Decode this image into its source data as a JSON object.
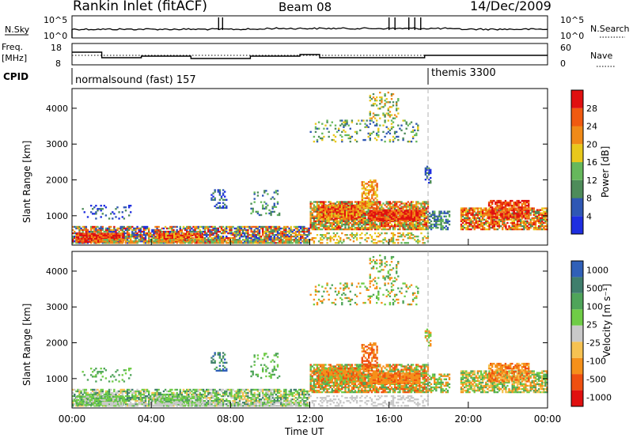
{
  "header": {
    "title": "Rankin Inlet (fitACF)",
    "beam": "Beam 08",
    "date": "14/Dec/2009"
  },
  "noise_panel": {
    "left_label": "N.Sky",
    "left_ticks": [
      "10^5",
      "10^0"
    ],
    "right_label": "N.Search",
    "right_ticks": [
      "10^5",
      "10^0"
    ]
  },
  "freq_panel": {
    "left_label_1": "Freq.",
    "left_label_2": "[MHz]",
    "left_ticks": [
      "18",
      "8"
    ],
    "right_label": "Nave",
    "right_ticks": [
      "60",
      "0"
    ]
  },
  "cpid": {
    "label": "CPID",
    "segments": [
      {
        "name": "normalsound (fast) 157",
        "start_hour": 0
      },
      {
        "name": "themis 3300",
        "start_hour": 18
      }
    ]
  },
  "colors": {
    "power_scale": [
      "#1e2ee0",
      "#2f57b4",
      "#4e8c5a",
      "#66b85c",
      "#e8c81c",
      "#f08a18",
      "#f05a10",
      "#e01010"
    ],
    "velocity_scale": [
      "#e01010",
      "#ef5010",
      "#f5901a",
      "#f6c252",
      "#c9c9c9",
      "#6fcc46",
      "#4fa45a",
      "#3f7e6c",
      "#3060b8"
    ],
    "ground_scatter": "#c9c9c9"
  },
  "chart_data": [
    {
      "type": "heatmap",
      "name": "power",
      "ylabel": "Slant Range [km]",
      "xlabel": "",
      "ylim": [
        180,
        4550
      ],
      "xlim": [
        0,
        24
      ],
      "y_ticks": [
        "1000",
        "2000",
        "3000",
        "4000"
      ],
      "colorbar_label": "Power [dB]",
      "colorbar_ticks": [
        "4",
        "8",
        "12",
        "16",
        "20",
        "24",
        "28"
      ]
    },
    {
      "type": "heatmap",
      "name": "velocity",
      "ylabel": "Slant Range [km]",
      "xlabel": "Time UT",
      "ylim": [
        180,
        4550
      ],
      "xlim": [
        0,
        24
      ],
      "y_ticks": [
        "1000",
        "2000",
        "3000",
        "4000"
      ],
      "x_ticks": [
        "00:00",
        "04:00",
        "08:00",
        "12:00",
        "16:00",
        "20:00",
        "00:00"
      ],
      "colorbar_label": "Velocity [m s⁻¹]",
      "colorbar_ticks": [
        "1000",
        "500",
        "100",
        "25",
        "-25",
        "-100",
        "-500",
        "-1000"
      ]
    }
  ]
}
